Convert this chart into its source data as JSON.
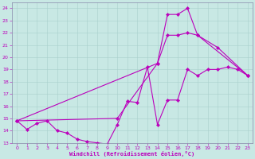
{
  "bg_color": "#c8e8e4",
  "grid_color": "#a8d0cc",
  "line_color": "#bb00bb",
  "xlabel": "Windchill (Refroidissement éolien,°C)",
  "xlim": [
    -0.5,
    23.5
  ],
  "ylim": [
    13,
    24.5
  ],
  "xticks": [
    0,
    1,
    2,
    3,
    4,
    5,
    6,
    7,
    8,
    9,
    10,
    11,
    12,
    13,
    14,
    15,
    16,
    17,
    18,
    19,
    20,
    21,
    22,
    23
  ],
  "yticks": [
    13,
    14,
    15,
    16,
    17,
    18,
    19,
    20,
    21,
    22,
    23,
    24
  ],
  "s1x": [
    0,
    1,
    2,
    3,
    4,
    5,
    6,
    7,
    8,
    9,
    10,
    11,
    12,
    13,
    14,
    15,
    16,
    17,
    18,
    19,
    20,
    21,
    22,
    23
  ],
  "s1y": [
    14.8,
    14.1,
    14.6,
    14.8,
    14.0,
    13.8,
    13.3,
    13.1,
    13.0,
    12.9,
    14.5,
    16.4,
    16.3,
    19.2,
    14.5,
    16.5,
    16.5,
    19.0,
    18.5,
    19.0,
    19.0,
    19.2,
    19.0,
    18.5
  ],
  "s2x": [
    0,
    14,
    15,
    16,
    17,
    18,
    20,
    23
  ],
  "s2y": [
    14.8,
    19.5,
    23.5,
    23.5,
    24.0,
    21.8,
    20.8,
    18.5
  ],
  "s3x": [
    0,
    10,
    14,
    15,
    16,
    17,
    18,
    23
  ],
  "s3y": [
    14.8,
    15.0,
    19.5,
    21.8,
    21.8,
    22.0,
    21.8,
    18.5
  ]
}
